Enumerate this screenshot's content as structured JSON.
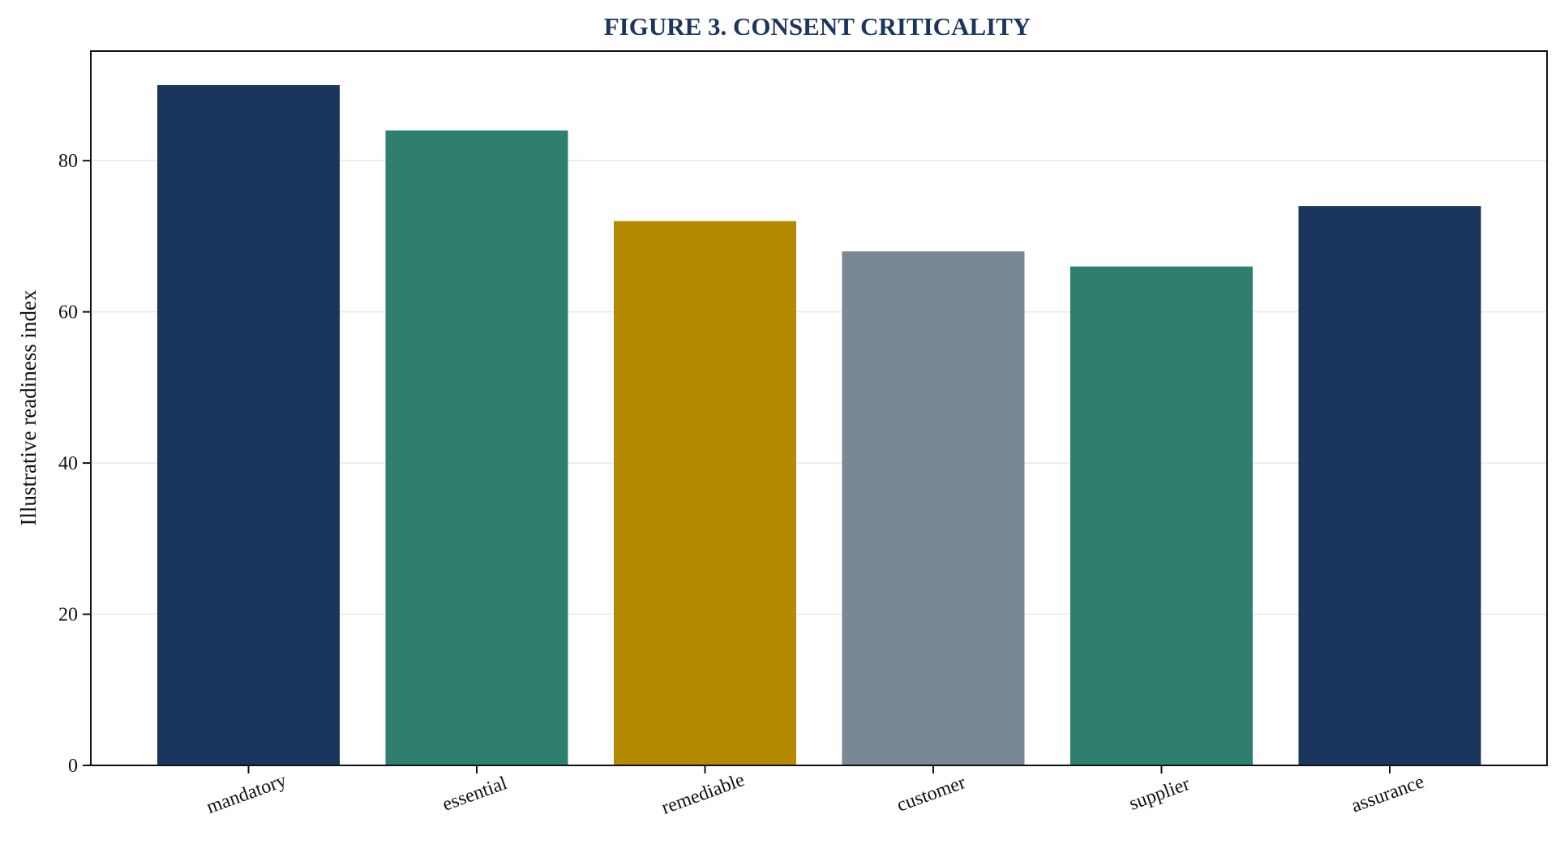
{
  "chart_data": {
    "type": "bar",
    "title": "FIGURE 3. CONSENT CRITICALITY",
    "xlabel": "",
    "ylabel": "Illustrative readiness index",
    "categories": [
      "mandatory",
      "essential",
      "remediable",
      "customer",
      "supplier",
      "assurance"
    ],
    "values": [
      90,
      84,
      72,
      68,
      66,
      74
    ],
    "bar_colors": [
      "#1b365d",
      "#2e7f6e",
      "#b38a00",
      "#7a8794",
      "#2e7f6e",
      "#1b365d"
    ],
    "ylim": [
      0,
      94.5
    ],
    "yticks": [
      0,
      20,
      40,
      60,
      80
    ],
    "grid": "y",
    "legend": "none"
  },
  "colors": {
    "title": "#1b365d",
    "axis": "#111111",
    "grid": "#e8e8e8"
  }
}
